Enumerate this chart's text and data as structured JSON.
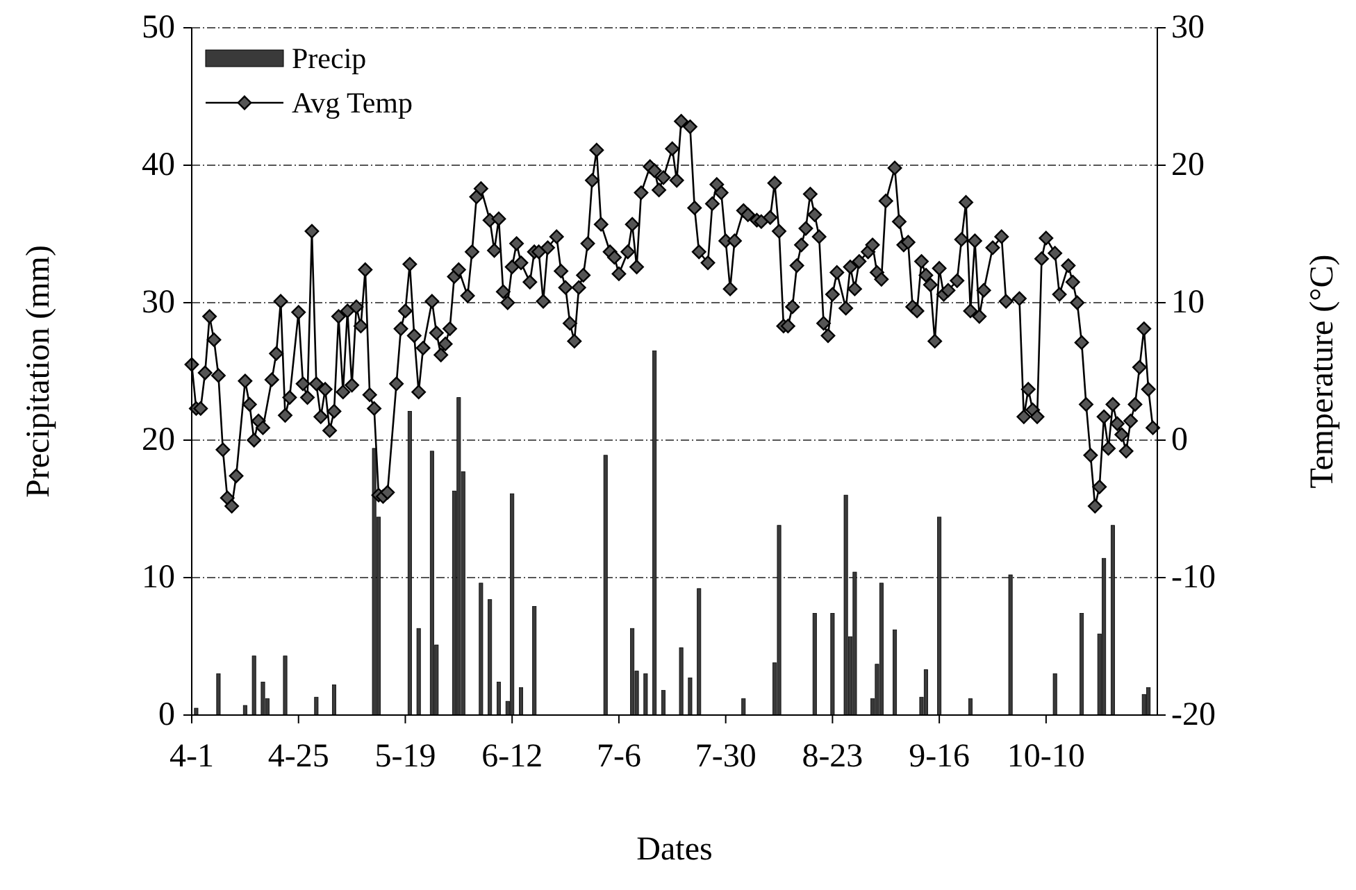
{
  "chart_data": {
    "type": "bar",
    "xlabel": "Dates",
    "ylabel": "Precipitation (mm)",
    "y2label": "Temperature (°C)",
    "xlim": [
      "--04-01",
      "--11-04"
    ],
    "xticks": [
      {
        "value": "--04-01",
        "label": "4-1"
      },
      {
        "value": "--04-25",
        "label": "4-25"
      },
      {
        "value": "--05-19",
        "label": "5-19"
      },
      {
        "value": "--06-12",
        "label": "6-12"
      },
      {
        "value": "--07-06",
        "label": "7-6"
      },
      {
        "value": "--07-30",
        "label": "7-30"
      },
      {
        "value": "--08-23",
        "label": "8-23"
      },
      {
        "value": "--09-16",
        "label": "9-16"
      },
      {
        "value": "--10-10",
        "label": "10-10"
      }
    ],
    "ylim": [
      0,
      50
    ],
    "yticks": [
      0,
      10,
      20,
      30,
      40,
      50
    ],
    "y2lim": [
      -20,
      30
    ],
    "y2ticks": [
      -20,
      -10,
      0,
      10,
      20,
      30
    ],
    "grid": "y",
    "legend": "top left",
    "marker": "diamond",
    "series": [
      {
        "name": "Precip",
        "color": "#3a3a3a",
        "x": [
          "--04-02",
          "--04-07",
          "--04-13",
          "--04-15",
          "--04-17",
          "--04-18",
          "--04-22",
          "--04-29",
          "--05-03",
          "--05-12",
          "--05-13",
          "--05-20",
          "--05-22",
          "--05-25",
          "--05-26",
          "--05-30",
          "--05-31",
          "--06-01",
          "--06-05",
          "--06-07",
          "--06-09",
          "--06-11",
          "--06-12",
          "--06-14",
          "--06-17",
          "--07-03",
          "--07-09",
          "--07-10",
          "--07-12",
          "--07-14",
          "--07-16",
          "--07-20",
          "--07-22",
          "--07-24",
          "--08-03",
          "--08-10",
          "--08-11",
          "--08-19",
          "--08-23",
          "--08-26",
          "--08-27",
          "--08-28",
          "--09-01",
          "--09-02",
          "--09-03",
          "--09-06",
          "--09-12",
          "--09-13",
          "--09-16",
          "--09-23",
          "--10-02",
          "--10-12",
          "--10-18",
          "--10-22",
          "--10-23",
          "--10-25",
          "--11-01",
          "--11-02"
        ],
        "values": [
          0.5,
          3.0,
          0.7,
          4.3,
          2.4,
          1.2,
          4.3,
          1.3,
          2.2,
          19.4,
          14.4,
          22.1,
          6.3,
          19.2,
          5.1,
          16.3,
          23.1,
          17.7,
          9.6,
          8.4,
          2.4,
          1.0,
          16.1,
          2.0,
          7.9,
          18.9,
          6.3,
          3.2,
          3.0,
          26.5,
          1.8,
          4.9,
          2.7,
          9.2,
          1.2,
          3.8,
          13.8,
          7.4,
          7.4,
          16.0,
          5.7,
          10.4,
          1.2,
          3.7,
          9.6,
          6.2,
          1.3,
          3.3,
          14.4,
          1.2,
          10.2,
          3.0,
          7.4,
          5.9,
          11.4,
          13.8,
          1.5,
          2.0
        ]
      },
      {
        "name": "Avg Temp",
        "type": "line",
        "axis": "y2",
        "color": "#000000",
        "x": [
          "--04-01",
          "--04-02",
          "--04-03",
          "--04-04",
          "--04-05",
          "--04-06",
          "--04-07",
          "--04-08",
          "--04-09",
          "--04-10",
          "--04-11",
          "--04-13",
          "--04-14",
          "--04-15",
          "--04-16",
          "--04-17",
          "--04-19",
          "--04-20",
          "--04-21",
          "--04-22",
          "--04-23",
          "--04-25",
          "--04-26",
          "--04-27",
          "--04-28",
          "--04-29",
          "--04-30",
          "--05-01",
          "--05-02",
          "--05-03",
          "--05-04",
          "--05-05",
          "--05-06",
          "--05-07",
          "--05-08",
          "--05-09",
          "--05-10",
          "--05-11",
          "--05-12",
          "--05-13",
          "--05-14",
          "--05-15",
          "--05-17",
          "--05-18",
          "--05-19",
          "--05-20",
          "--05-21",
          "--05-22",
          "--05-23",
          "--05-25",
          "--05-26",
          "--05-27",
          "--05-28",
          "--05-29",
          "--05-30",
          "--05-31",
          "--06-02",
          "--06-03",
          "--06-04",
          "--06-05",
          "--06-07",
          "--06-08",
          "--06-09",
          "--06-10",
          "--06-11",
          "--06-12",
          "--06-13",
          "--06-14",
          "--06-16",
          "--06-17",
          "--06-18",
          "--06-19",
          "--06-20",
          "--06-22",
          "--06-23",
          "--06-24",
          "--06-25",
          "--06-26",
          "--06-27",
          "--06-28",
          "--06-29",
          "--06-30",
          "--07-01",
          "--07-02",
          "--07-04",
          "--07-05",
          "--07-06",
          "--07-08",
          "--07-09",
          "--07-10",
          "--07-11",
          "--07-13",
          "--07-14",
          "--07-15",
          "--07-16",
          "--07-18",
          "--07-19",
          "--07-20",
          "--07-22",
          "--07-23",
          "--07-24",
          "--07-26",
          "--07-27",
          "--07-28",
          "--07-29",
          "--07-30",
          "--07-31",
          "--08-01",
          "--08-03",
          "--08-04",
          "--08-06",
          "--08-07",
          "--08-09",
          "--08-10",
          "--08-11",
          "--08-12",
          "--08-13",
          "--08-14",
          "--08-15",
          "--08-16",
          "--08-17",
          "--08-18",
          "--08-19",
          "--08-20",
          "--08-21",
          "--08-22",
          "--08-23",
          "--08-24",
          "--08-26",
          "--08-27",
          "--08-28",
          "--08-29",
          "--08-31",
          "--09-01",
          "--09-02",
          "--09-03",
          "--09-04",
          "--09-06",
          "--09-07",
          "--09-08",
          "--09-09",
          "--09-10",
          "--09-11",
          "--09-12",
          "--09-13",
          "--09-14",
          "--09-15",
          "--09-16",
          "--09-17",
          "--09-18",
          "--09-20",
          "--09-21",
          "--09-22",
          "--09-23",
          "--09-24",
          "--09-25",
          "--09-26",
          "--09-28",
          "--09-30",
          "--10-01",
          "--10-04",
          "--10-05",
          "--10-06",
          "--10-07",
          "--10-08",
          "--10-09",
          "--10-10",
          "--10-12",
          "--10-13",
          "--10-15",
          "--10-16",
          "--10-17",
          "--10-18",
          "--10-19",
          "--10-20",
          "--10-21",
          "--10-22",
          "--10-23",
          "--10-24",
          "--10-25",
          "--10-26",
          "--10-27",
          "--10-28",
          "--10-29",
          "--10-30",
          "--10-31",
          "--11-01",
          "--11-02",
          "--11-03"
        ],
        "values": [
          5.5,
          2.3,
          2.3,
          4.9,
          9.0,
          7.3,
          4.7,
          -0.7,
          -4.2,
          -4.8,
          -2.6,
          4.3,
          2.6,
          0.0,
          1.4,
          0.9,
          4.4,
          6.3,
          10.1,
          1.8,
          3.1,
          9.3,
          4.1,
          3.1,
          15.2,
          4.1,
          1.7,
          3.7,
          0.7,
          2.1,
          9.0,
          3.5,
          9.4,
          4.0,
          9.7,
          8.3,
          12.4,
          3.3,
          2.3,
          -4.0,
          -4.1,
          -3.8,
          4.1,
          8.1,
          9.4,
          12.8,
          7.6,
          3.5,
          6.7,
          10.1,
          7.8,
          6.2,
          7.0,
          8.1,
          11.9,
          12.4,
          10.5,
          13.7,
          17.7,
          18.3,
          16.0,
          13.8,
          16.1,
          10.8,
          10.0,
          12.6,
          14.3,
          12.9,
          11.5,
          13.7,
          13.7,
          10.1,
          14.0,
          14.8,
          12.3,
          11.1,
          8.5,
          7.2,
          11.1,
          12.0,
          14.3,
          18.9,
          21.1,
          15.7,
          13.7,
          13.3,
          12.1,
          13.7,
          15.7,
          12.6,
          18.0,
          19.9,
          19.6,
          18.2,
          19.1,
          21.2,
          18.9,
          23.2,
          22.8,
          16.9,
          13.7,
          12.9,
          17.2,
          18.6,
          18.0,
          14.5,
          11.0,
          14.5,
          16.7,
          16.4,
          16.0,
          15.9,
          16.2,
          18.7,
          15.2,
          8.3,
          8.3,
          9.7,
          12.7,
          14.2,
          15.4,
          17.9,
          16.4,
          14.8,
          8.5,
          7.6,
          10.6,
          12.2,
          9.6,
          12.6,
          11.0,
          13.0,
          13.7,
          14.2,
          12.2,
          11.7,
          17.4,
          19.8,
          15.9,
          14.2,
          14.4,
          9.7,
          9.4,
          13.0,
          12.0,
          11.3,
          7.2,
          12.5,
          10.6,
          10.9,
          11.6,
          14.6,
          17.3,
          9.4,
          14.5,
          9.0,
          10.9,
          14.0,
          14.8,
          10.1,
          10.3,
          1.7,
          3.7,
          2.2,
          1.7,
          13.2,
          14.7,
          13.6,
          10.6,
          12.7,
          11.5,
          10.0,
          7.1,
          2.6,
          -1.1,
          -4.8,
          -3.4,
          1.7,
          -0.6,
          2.6,
          1.2,
          0.4,
          -0.8,
          1.4,
          2.6,
          5.3,
          8.1,
          3.7,
          0.9
        ]
      }
    ]
  }
}
